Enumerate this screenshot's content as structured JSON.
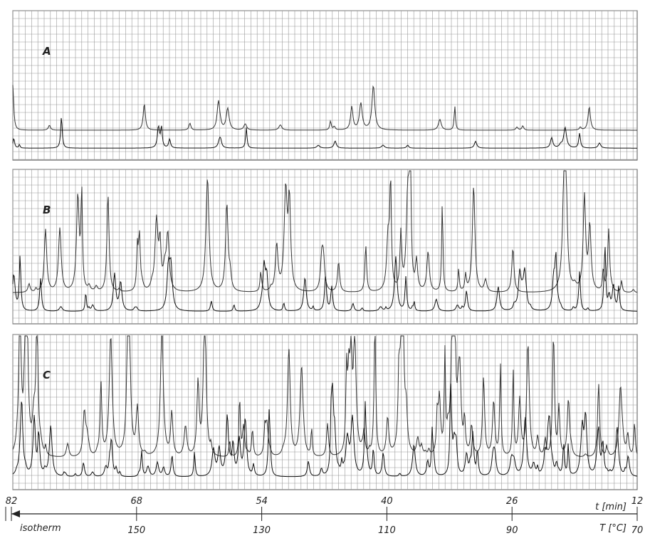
{
  "panels": [
    {
      "label": "A"
    },
    {
      "label": "B"
    },
    {
      "label": "C"
    }
  ],
  "axis": {
    "time_ticks": [
      82,
      68,
      54,
      40,
      26,
      12
    ],
    "temperature_ticks": [
      150,
      130,
      110,
      90,
      70
    ],
    "time_label": "t [min]",
    "temperature_label": "T [°C]",
    "isotherm_label": "isotherm"
  }
}
